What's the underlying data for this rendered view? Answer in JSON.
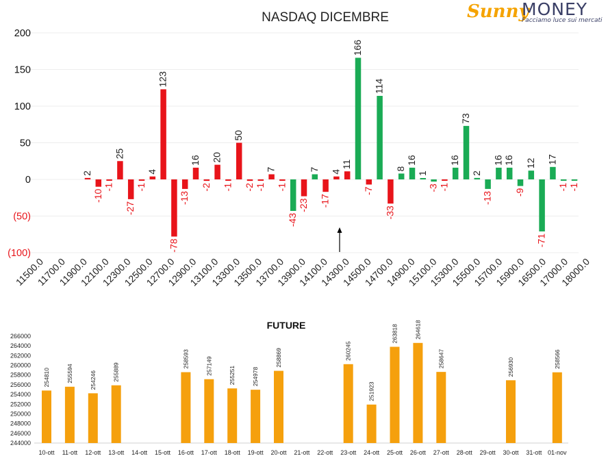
{
  "brand": {
    "name_sunny": "Sunny",
    "name_money": "MONEY",
    "tagline": "Facciamo luce sui mercati"
  },
  "colors": {
    "negative": "#e8141a",
    "positive": "#1aab55",
    "future": "#f5a00d",
    "arrow": "#000000"
  },
  "chart_data": [
    {
      "type": "bar",
      "title": "NASDAQ DICEMBRE",
      "xlabel": "",
      "ylabel": "",
      "ylim": [
        -100,
        200
      ],
      "y_ticks": [
        {
          "v": 200,
          "t": "200"
        },
        {
          "v": 150,
          "t": "150"
        },
        {
          "v": 100,
          "t": "100"
        },
        {
          "v": 50,
          "t": "50"
        },
        {
          "v": 0,
          "t": "0"
        },
        {
          "v": -50,
          "t": "(50)"
        },
        {
          "v": -100,
          "t": "(100)"
        }
      ],
      "x_ticks": [
        "11500.0",
        "11700.0",
        "11900.0",
        "12100.0",
        "12300.0",
        "12500.0",
        "12700.0",
        "12900.0",
        "13100.0",
        "13300.0",
        "13500.0",
        "13700.0",
        "13900.0",
        "14100.0",
        "14300.0",
        "14500.0",
        "14700.0",
        "14900.0",
        "15100.0",
        "15300.0",
        "15500.0",
        "15700.0",
        "15900.0",
        "16500.0",
        "17000.0",
        "18000.0"
      ],
      "grid": true,
      "annotation": "arrow pointing up at 14300.0",
      "bars": [
        {
          "s": "put",
          "v": 2,
          "l": "2"
        },
        {
          "s": "put",
          "v": -10,
          "l": "-10"
        },
        {
          "s": "put",
          "v": -1,
          "l": "-1"
        },
        {
          "s": "put",
          "v": 25,
          "l": "25"
        },
        {
          "s": "put",
          "v": -27,
          "l": "-27"
        },
        {
          "s": "put",
          "v": -1,
          "l": "-1"
        },
        {
          "s": "put",
          "v": 4,
          "l": "4"
        },
        {
          "s": "put",
          "v": 123,
          "l": "123"
        },
        {
          "s": "put",
          "v": -78,
          "l": "-78"
        },
        {
          "s": "put",
          "v": -13,
          "l": "-13"
        },
        {
          "s": "put",
          "v": 16,
          "l": "16"
        },
        {
          "s": "put",
          "v": -2,
          "l": "-2"
        },
        {
          "s": "put",
          "v": 20,
          "l": "20"
        },
        {
          "s": "put",
          "v": -1,
          "l": "-1"
        },
        {
          "s": "put",
          "v": 50,
          "l": "50"
        },
        {
          "s": "put",
          "v": -2,
          "l": "-2"
        },
        {
          "s": "put",
          "v": -1,
          "l": "-1"
        },
        {
          "s": "put",
          "v": 7,
          "l": "7"
        },
        {
          "s": "put",
          "v": -1,
          "l": "-1"
        },
        {
          "s": "call",
          "v": -43,
          "l": "-43"
        },
        {
          "s": "put",
          "v": -23,
          "l": "-23"
        },
        {
          "s": "call",
          "v": 7,
          "l": "7"
        },
        {
          "s": "put",
          "v": -17,
          "l": "-17"
        },
        {
          "s": "put",
          "v": 4,
          "l": "4"
        },
        {
          "s": "put",
          "v": 11,
          "l": "11"
        },
        {
          "s": "call",
          "v": 166,
          "l": "166"
        },
        {
          "s": "put",
          "v": -7,
          "l": "-7"
        },
        {
          "s": "call",
          "v": 114,
          "l": "114"
        },
        {
          "s": "put",
          "v": -33,
          "l": "-33"
        },
        {
          "s": "call",
          "v": 8,
          "l": "8"
        },
        {
          "s": "call",
          "v": 16,
          "l": "16"
        },
        {
          "s": "call",
          "v": 1,
          "l": "1"
        },
        {
          "s": "call",
          "v": -3,
          "l": "-3"
        },
        {
          "s": "put",
          "v": -1,
          "l": "-1"
        },
        {
          "s": "call",
          "v": 16,
          "l": "16"
        },
        {
          "s": "call",
          "v": 73,
          "l": "73"
        },
        {
          "s": "call",
          "v": 2,
          "l": "2"
        },
        {
          "s": "call",
          "v": -13,
          "l": "-13"
        },
        {
          "s": "call",
          "v": 16,
          "l": "16"
        },
        {
          "s": "call",
          "v": 16,
          "l": "16"
        },
        {
          "s": "call",
          "v": -9,
          "l": "-9"
        },
        {
          "s": "call",
          "v": 12,
          "l": "12"
        },
        {
          "s": "call",
          "v": -71,
          "l": "-71"
        },
        {
          "s": "call",
          "v": 17,
          "l": "17"
        },
        {
          "s": "call",
          "v": -1,
          "l": "-1"
        },
        {
          "s": "call",
          "v": -1,
          "l": "-1"
        }
      ]
    },
    {
      "type": "bar",
      "title": "FUTURE",
      "xlabel": "",
      "ylabel": "",
      "ylim": [
        244000,
        266000
      ],
      "y_ticks": [
        "266000",
        "264000",
        "262000",
        "260000",
        "258000",
        "256000",
        "254000",
        "252000",
        "250000",
        "248000",
        "246000",
        "244000"
      ],
      "categories": [
        "10-ott",
        "11-ott",
        "12-ott",
        "13-ott",
        "14-ott",
        "15-ott",
        "16-ott",
        "17-ott",
        "18-ott",
        "19-ott",
        "20-ott",
        "21-ott",
        "22-ott",
        "23-ott",
        "24-ott",
        "25-ott",
        "26-ott",
        "27-ott",
        "28-ott",
        "29-ott",
        "30-ott",
        "31-ott",
        "01-nov"
      ],
      "values": [
        254810,
        255594,
        254246,
        255889,
        null,
        null,
        258593,
        257149,
        255251,
        254978,
        258869,
        null,
        null,
        260245,
        251923,
        263818,
        264618,
        258647,
        null,
        null,
        256930,
        null,
        258566
      ],
      "grid": false
    }
  ]
}
